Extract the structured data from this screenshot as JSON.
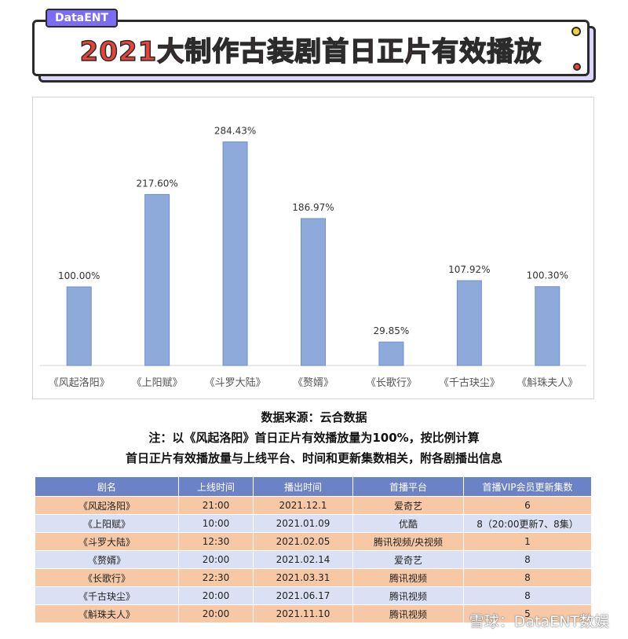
{
  "header": {
    "brand": "DataENT",
    "title": "2021大制作古装剧首日正片有效播放"
  },
  "chart_data": {
    "type": "bar",
    "categories": [
      "《风起洛阳》",
      "《上阳赋》",
      "《斗罗大陆》",
      "《赘婿》",
      "《长歌行》",
      "《千古玦尘》",
      "《斛珠夫人》"
    ],
    "values": [
      100.0,
      217.6,
      284.43,
      186.97,
      29.85,
      107.92,
      100.3
    ],
    "data_labels": [
      "100.00%",
      "217.60%",
      "284.43%",
      "186.97%",
      "29.85%",
      "107.92%",
      "100.30%"
    ],
    "ylim": [
      0,
      300
    ],
    "bar_color": "#8eaadb",
    "grid": false,
    "title": "",
    "xlabel": "",
    "ylabel": ""
  },
  "notes": {
    "source": "数据来源：云合数据",
    "note1": "注：以《风起洛阳》首日正片有效播放量为100%，按比例计算",
    "note2": "首日正片有效播放量与上线平台、时间和更新集数相关，附各剧播出信息"
  },
  "table": {
    "headers": [
      "剧名",
      "上线时间",
      "播出时间",
      "首播平台",
      "首播VIP会员更新集数"
    ],
    "rows": [
      [
        "《风起洛阳》",
        "21:00",
        "2021.12.1",
        "爱奇艺",
        "6"
      ],
      [
        "《上阳赋》",
        "10:00",
        "2021.01.09",
        "优酷",
        "8（20:00更新7、8集）"
      ],
      [
        "《斗罗大陆》",
        "12:30",
        "2021.02.05",
        "腾讯视频/央视频",
        "1"
      ],
      [
        "《赘婿》",
        "20:00",
        "2021.02.14",
        "爱奇艺",
        "8"
      ],
      [
        "《长歌行》",
        "22:30",
        "2021.03.31",
        "腾讯视频",
        "8"
      ],
      [
        "《千古玦尘》",
        "20:00",
        "2021.06.17",
        "腾讯视频",
        "8"
      ],
      [
        "《斛珠夫人》",
        "20:00",
        "2021.11.10",
        "腾讯视频",
        "5"
      ]
    ]
  },
  "watermark": "雪球：DataENT数娱"
}
